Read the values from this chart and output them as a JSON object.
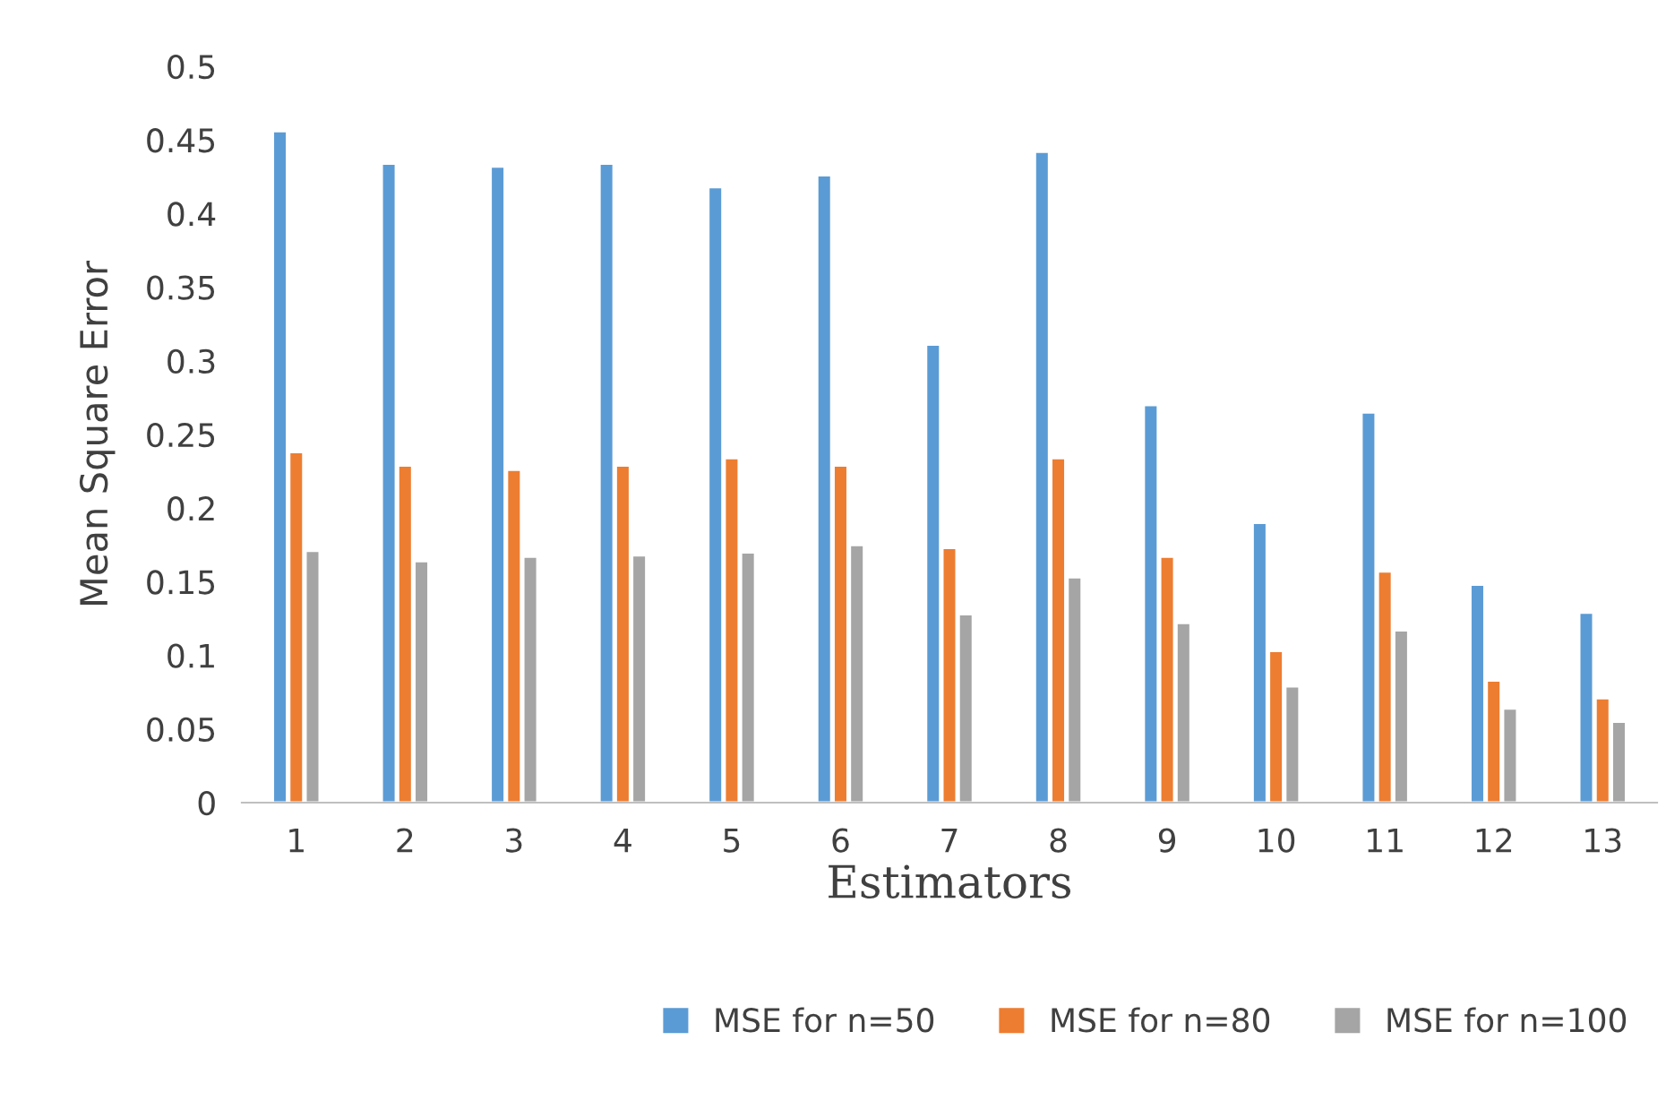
{
  "chart_data": {
    "type": "bar",
    "xlabel": "Estimators",
    "ylabel": "Mean Square Error",
    "categories": [
      "1",
      "2",
      "3",
      "4",
      "5",
      "6",
      "7",
      "8",
      "9",
      "10",
      "11",
      "12",
      "13"
    ],
    "series": [
      {
        "name": "MSE for n=50",
        "color": "#5b9bd5",
        "values": [
          0.456,
          0.434,
          0.432,
          0.434,
          0.418,
          0.426,
          0.311,
          0.442,
          0.27,
          0.19,
          0.265,
          0.148,
          0.129
        ]
      },
      {
        "name": "MSE for n=80",
        "color": "#ed7d31",
        "values": [
          0.238,
          0.229,
          0.226,
          0.229,
          0.234,
          0.229,
          0.173,
          0.234,
          0.167,
          0.103,
          0.157,
          0.083,
          0.071
        ]
      },
      {
        "name": "MSE for n=100",
        "color": "#a5a5a5",
        "values": [
          0.171,
          0.164,
          0.167,
          0.168,
          0.17,
          0.175,
          0.128,
          0.153,
          0.122,
          0.079,
          0.117,
          0.064,
          0.055
        ]
      }
    ],
    "ylim": [
      0,
      0.5
    ],
    "yticks": [
      0,
      0.05,
      0.1,
      0.15,
      0.2,
      0.25,
      0.3,
      0.35,
      0.4,
      0.45,
      0.5
    ],
    "grid": false,
    "legend": "bottom"
  }
}
